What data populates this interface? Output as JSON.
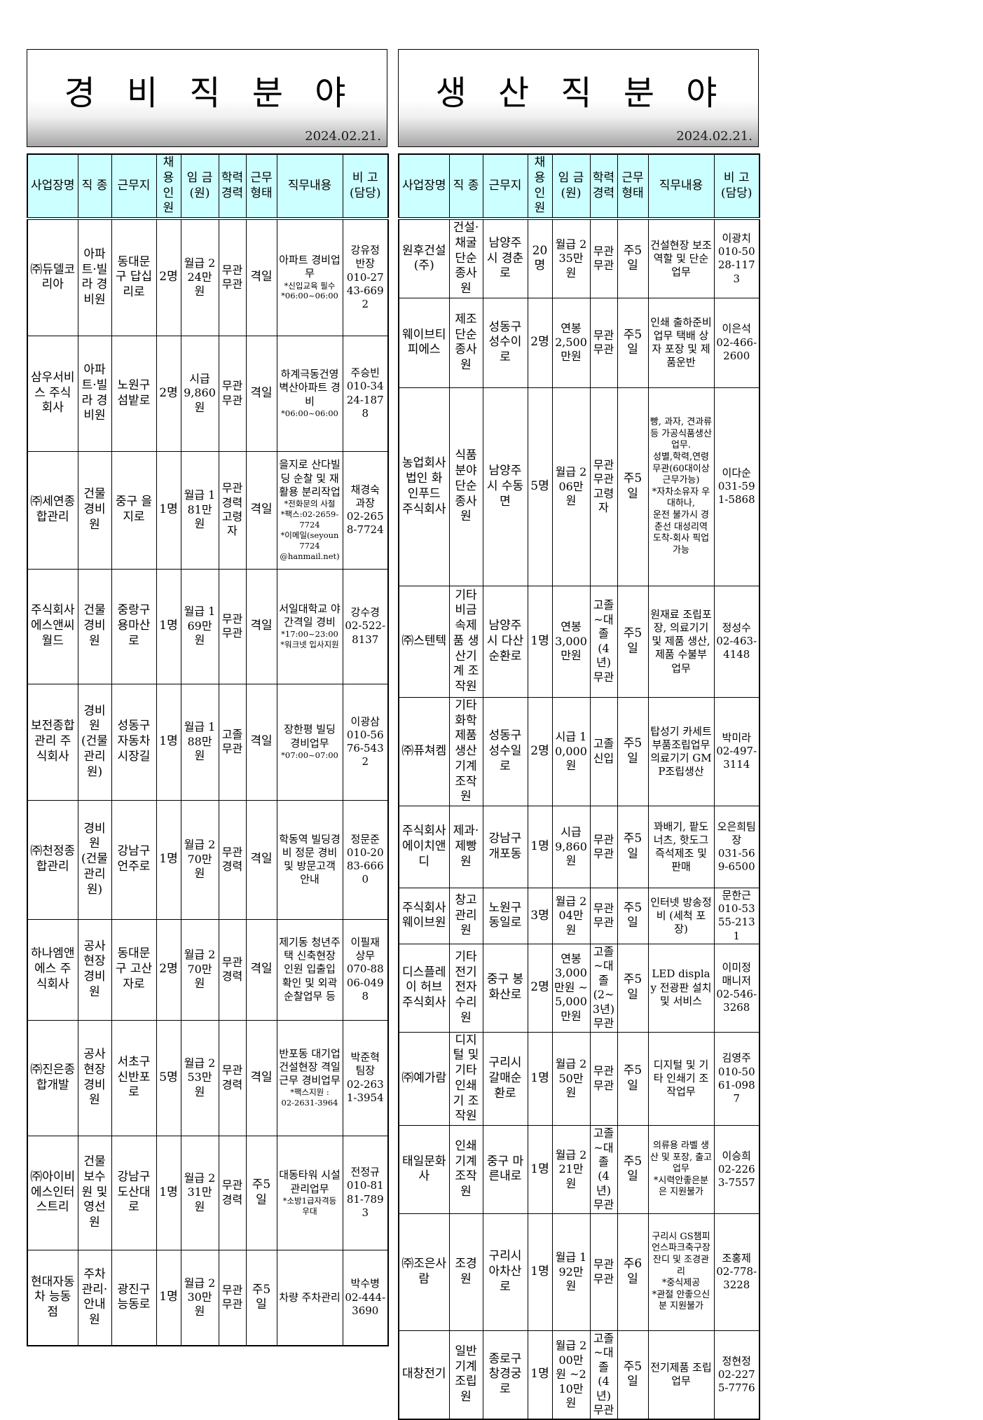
{
  "colors": {
    "header_bg": "#ccffff",
    "border": "#000000",
    "band_gradient_end": "#a6a6a6"
  },
  "tables": [
    {
      "title": "경 비 직 분 야",
      "date": "2024.02.21.",
      "columns": [
        "company",
        "job",
        "location",
        "hires",
        "wage",
        "edu",
        "worktype",
        "duty",
        "contact"
      ],
      "headers": [
        "사업장명",
        "직 종",
        "근무지",
        "채용\n인원",
        "임 금\n(원)",
        "학력\n경력",
        "근무\n형태",
        "직무내용",
        "비 고\n(담당)"
      ],
      "rows": [
        {
          "company": "㈜듀델코리아",
          "job": "아파트·빌라 경비원",
          "location": "동대문구 답십리로",
          "hires": "2명",
          "wage": "월급 224만원",
          "edu": "무관 무관",
          "worktype": "격일",
          "duty": {
            "main": "아파트 경비업무",
            "notes": "*신입교육 필수\n*06:00~06:00"
          },
          "contact": "강유정 반장\n010-2743-6692"
        },
        {
          "company": "삼우서비스 주식회사",
          "job": "아파트·빌라 경비원",
          "location": "노원구 섬밭로",
          "hires": "2명",
          "wage": "시급 9,860원",
          "edu": "무관 무관",
          "worktype": "격일",
          "duty": {
            "main": "하계극동건영 벽산아파트 경비",
            "notes": "*06:00~06:00"
          },
          "contact": "주승빈\n010-3424-1878"
        },
        {
          "company": "㈜세연종합관리",
          "job": "건물경비원",
          "location": "중구 을지로",
          "hires": "1명",
          "wage": "월급 181만원",
          "edu": "무관 경력 고령자",
          "worktype": "격일",
          "duty": {
            "main": "을지로 산다빌딩 순찰 및 재활용 분리작업",
            "notes": "*전화문의 사절\n*팩스:02-2659-7724\n*이메일(seyoun7724\n@hanmail.net)"
          },
          "contact": "채경숙 과장\n02-2658-7724"
        },
        {
          "company": "주식회사 에스앤씨월드",
          "job": "건물 경비원",
          "location": "중랑구 용마산로",
          "hires": "1명",
          "wage": "월급 169만원",
          "edu": "무관 무관",
          "worktype": "격일",
          "duty": {
            "main": "서일대학교 야간격일 경비",
            "notes": "*17:00~23:00\n*워크넷 입사지원"
          },
          "contact": "강수경\n02-522-8137"
        },
        {
          "company": "보전종합관리 주식회사",
          "job": "경비원 (건물 관리원)",
          "location": "성동구 자동차 시장길",
          "hires": "1명",
          "wage": "월급 188만원",
          "edu": "고졸 무관",
          "worktype": "격일",
          "duty": {
            "main": "장한평 빌딩 경비업무",
            "notes": "*07:00~07:00"
          },
          "contact": "이광삼\n010-5676-5432"
        },
        {
          "company": "㈜천정종합관리",
          "job": "경비원 (건물 관리원)",
          "location": "강남구 언주로",
          "hires": "1명",
          "wage": "월급 270만원",
          "edu": "무관 경력",
          "worktype": "격일",
          "duty": {
            "main": "학동역 빌딩경비 정문 경비 및 방문고객 안내"
          },
          "contact": "정문준\n010-2083-6660"
        },
        {
          "company": "하나엠앤에스 주식회사",
          "job": "공사현장 경비원",
          "location": "동대문구 고산자로",
          "hires": "2명",
          "wage": "월급 270만원",
          "edu": "무관 경력",
          "worktype": "격일",
          "duty": {
            "main": "제기동 청년주택 신축현장 인원 입출입 확인 및 외곽 순찰업무 등"
          },
          "contact": "이필재 상무\n070-8806-0498"
        },
        {
          "company": "㈜진은종합개발",
          "job": "공사현장 경비원",
          "location": "서초구 신반포로",
          "hires": "5명",
          "wage": "월급 253만원",
          "edu": "무관 경력",
          "worktype": "격일",
          "duty": {
            "main": "반포동 대기업 건설현장 격일 근무 경비업무",
            "notes": "*팩스지원 :\n02-2631-3964"
          },
          "contact": "박준혁 팀장\n02-2631-3954"
        },
        {
          "company": "㈜아이비에스인터스트리",
          "job": "건물 보수원 및 영선원",
          "location": "강남구 도산대로",
          "hires": "1명",
          "wage": "월급 231만원",
          "edu": "무관 경력",
          "worktype": "주5일",
          "duty": {
            "main": "대동타워 시설관리업무",
            "notes": "*소방1급자격등 우대"
          },
          "contact": "전정규\n010-8181-7893"
        },
        {
          "company": "현대자동차 능동점",
          "job": "주차관리·안내원",
          "location": "광진구 능동로",
          "hires": "1명",
          "wage": "월급 230만원",
          "edu": "무관 무관",
          "worktype": "주5일",
          "duty": {
            "main": "차량 주차관리"
          },
          "contact": "박수병\n02-444-3690"
        }
      ]
    },
    {
      "title": "생 산 직 분 야",
      "date": "2024.02.21.",
      "columns": [
        "company",
        "job",
        "location",
        "hires",
        "wage",
        "edu",
        "worktype",
        "duty",
        "contact"
      ],
      "headers": [
        "사업장명",
        "직 종",
        "근무지",
        "채용\n인원",
        "임 금\n(원)",
        "학력\n경력",
        "근무\n형태",
        "직무내용",
        "비 고\n(담당)"
      ],
      "rows": [
        {
          "company": "원후건설 (주)",
          "job": "건설·채굴 단순종사원",
          "location": "남양주시 경춘로",
          "hires": "20명",
          "wage": "월급 235만원",
          "edu": "무관 무관",
          "worktype": "주5일",
          "duty": {
            "main": "건설현장 보조 역할 및 단순업무"
          },
          "contact": "이광치\n010-5028-1173"
        },
        {
          "company": "웨이브티피에스",
          "job": "제조단순 종사원",
          "location": "성동구 성수이로",
          "hires": "2명",
          "wage": "연봉 2,500만원",
          "edu": "무관 무관",
          "worktype": "주5일",
          "duty": {
            "main": "인쇄 출하준비업무 택배 상자 포장 및 제품운반"
          },
          "contact": "이은석\n02-466-2600"
        },
        {
          "company": "농업회사법인 화인푸드 주식회사",
          "job": "식품분야 단순종사원",
          "location": "남양주시 수동면",
          "hires": "5명",
          "wage": "월급 206만원",
          "edu": "무관 무관 고령자",
          "worktype": "주5일",
          "duty": {
            "main": "빵, 과자, 견과류 등 가공식품생산업무.\n성별,학력,연령 무관(60대이상 근무가능)\n*자차소유자 우대하나,\n운전 불가시 경춘선 대성리역 도착-회사 픽업 가능",
            "small": true
          },
          "contact": "이다순\n031-591-5868"
        },
        {
          "company": "㈜스텐텍",
          "job": "기타 비금속제품 생산기계 조작원",
          "location": "남양주시 다산순환로",
          "hires": "1명",
          "wage": "연봉 3,000만원",
          "edu": "고졸~대졸 (4년) 무관",
          "worktype": "주5일",
          "duty": {
            "main": "원재료 조립포장, 의료기기 및 제품 생산, 제품 수불부 업무"
          },
          "contact": "정성수\n02-463-4148"
        },
        {
          "company": "㈜퓨쳐켐",
          "job": "기타 화학제품 생산기계 조작원",
          "location": "성동구 성수일로",
          "hires": "2명",
          "wage": "시급 10,000원",
          "edu": "고졸 신입",
          "worktype": "주5일",
          "duty": {
            "main": "탑성기 카세트 부품조립업무 의료기기 GMP조립생산"
          },
          "contact": "박미라\n02-497-3114"
        },
        {
          "company": "주식회사 에이치앤디",
          "job": "제과·제빵원",
          "location": "강남구 개포동",
          "hires": "1명",
          "wage": "시급 9,860원",
          "edu": "무관 무관",
          "worktype": "주5일",
          "duty": {
            "main": "꽈배기, 팥도너츠, 핫도그 즉석제조 및 판매"
          },
          "contact": "오은희팀장\n031-569-6500"
        },
        {
          "company": "주식회사 웨이브원",
          "job": "창고관리원",
          "location": "노원구 동일로",
          "hires": "3명",
          "wage": "월급 204만원",
          "edu": "무관 무관",
          "worktype": "주5일",
          "duty": {
            "main": "인터넷 방송정비 (세척 포장)"
          },
          "contact": "문한근\n010-5355-2131"
        },
        {
          "company": "디스플레이 허브주식회사",
          "job": "기타 전기전자 수리원",
          "location": "중구 봉화산로",
          "hires": "2명",
          "wage": "연봉 3,000만원 ~5,000만원",
          "edu": "고졸~대졸 (2~3년) 무관",
          "worktype": "주5일",
          "duty": {
            "main": "LED display 전광판 설치 및 서비스"
          },
          "contact": "이미정 매니저\n02-546-3268"
        },
        {
          "company": "㈜예가람",
          "job": "디지털 및 기타 인쇄기 조작원",
          "location": "구리시 갈매순환로",
          "hires": "1명",
          "wage": "월급 250만원",
          "edu": "무관 무관",
          "worktype": "주5일",
          "duty": {
            "main": "디지털 및 기타 인쇄기 조작업무"
          },
          "contact": "김영주\n010-5061-0987"
        },
        {
          "company": "태일문화사",
          "job": "인쇄기계 조작원",
          "location": "중구 마른내로",
          "hires": "1명",
          "wage": "월급 221만원",
          "edu": "고졸~대졸 (4년) 무관",
          "worktype": "주5일",
          "duty": {
            "main": "의류용 라벨 생산 및 포장, 출고업무\n*시력안좋은분은 지원불가",
            "small": true
          },
          "contact": "이승희\n02-2263-7557"
        },
        {
          "company": "㈜조은사람",
          "job": "조경원",
          "location": "구리시 아차산로",
          "hires": "1명",
          "wage": "월급 192만원",
          "edu": "무관 무관",
          "worktype": "주6일",
          "duty": {
            "main": "구리시 GS챔피언스파크축구장 잔디 및 조경관리\n*중식제공\n*관절 안좋으신분 지원불가",
            "small": true
          },
          "contact": "조홍제\n02-778-3228"
        },
        {
          "company": "대창전기",
          "job": "일반기계 조립원",
          "location": "종로구 창경궁로",
          "hires": "1명",
          "wage": "월급 200만원 ~210만원",
          "edu": "고졸~대졸 (4년) 무관",
          "worktype": "주5일",
          "duty": {
            "main": "전기제품 조립업무"
          },
          "contact": "정현정\n02-2275-7776"
        }
      ]
    }
  ]
}
